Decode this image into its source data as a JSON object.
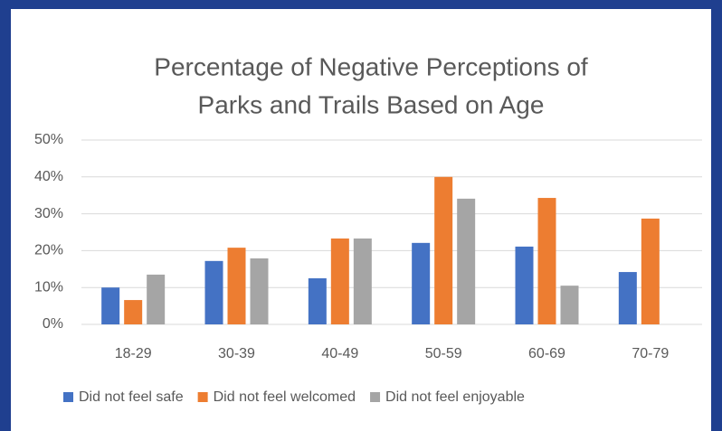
{
  "chart_data": {
    "type": "bar",
    "title": [
      "Percentage of Negative Perceptions of",
      "Parks and Trails Based on Age"
    ],
    "categories": [
      "18-29",
      "30-39",
      "40-49",
      "50-59",
      "60-69",
      "70-79"
    ],
    "series": [
      {
        "name": "Did not feel safe",
        "color": "#4472c4",
        "values": [
          10.0,
          17.2,
          12.5,
          22.1,
          21.1,
          14.2
        ]
      },
      {
        "name": "Did not feel welcomed",
        "color": "#ed7d31",
        "values": [
          6.6,
          20.8,
          23.3,
          40.0,
          34.3,
          28.7
        ]
      },
      {
        "name": "Did not feel enjoyable",
        "color": "#a5a5a5",
        "values": [
          13.5,
          17.9,
          23.3,
          34.1,
          10.5,
          null
        ]
      }
    ],
    "ylim": [
      0,
      50
    ],
    "yticks": [
      {
        "value": 0,
        "label": "0%"
      },
      {
        "value": 10,
        "label": "10%"
      },
      {
        "value": 20,
        "label": "20%"
      },
      {
        "value": 30,
        "label": "30%"
      },
      {
        "value": 40,
        "label": "40%"
      },
      {
        "value": 50,
        "label": "50%"
      }
    ],
    "grid": true,
    "legend": "bottom"
  }
}
